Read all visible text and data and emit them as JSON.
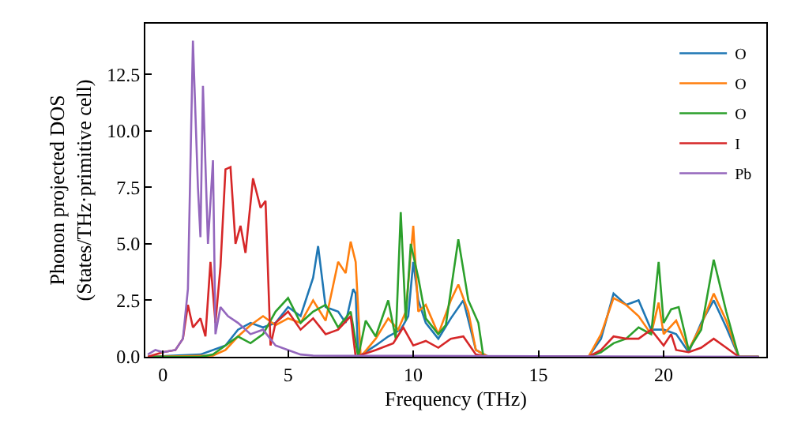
{
  "chart_data": {
    "type": "line",
    "xlabel": "Frequency (THz)",
    "ylabel": "Phonon projected DOS\n(States/THz·primitive cell)",
    "xlim": [
      -0.7,
      24.1
    ],
    "ylim": [
      0,
      14.75
    ],
    "xticks": [
      0,
      5,
      10,
      15,
      20
    ],
    "yticks": [
      {
        "value": 0,
        "label": "0.0"
      },
      {
        "value": 2.5,
        "label": "2.5"
      },
      {
        "value": 5,
        "label": "5.0"
      },
      {
        "value": 7.5,
        "label": "7.5"
      },
      {
        "value": 10,
        "label": "10.0"
      },
      {
        "value": 12.5,
        "label": "12.5"
      }
    ],
    "legend": "top right",
    "series": [
      {
        "name": "O",
        "color": "#1f77b4",
        "x": [
          -0.6,
          1.5,
          2.5,
          3,
          3.5,
          4,
          4.5,
          5,
          5.5,
          6,
          6.2,
          6.5,
          7,
          7.3,
          7.6,
          7.7,
          7.8,
          8.5,
          9,
          9.5,
          9.8,
          10,
          10.2,
          10.5,
          11,
          11.5,
          12,
          12.5,
          13,
          17,
          17.5,
          18,
          18.5,
          19,
          19.5,
          20,
          20.5,
          21,
          21.5,
          22,
          22.5,
          23,
          23.8
        ],
        "values": [
          0,
          0.1,
          0.5,
          1.2,
          1.5,
          1.3,
          1.5,
          2.2,
          1.8,
          3.5,
          4.9,
          2.2,
          2.0,
          1.5,
          3.0,
          2.8,
          0,
          0.5,
          0.9,
          1.2,
          1.8,
          4.2,
          2.5,
          1.5,
          0.8,
          1.7,
          2.5,
          0.3,
          0,
          0,
          0.8,
          2.8,
          2.3,
          2.5,
          1.2,
          1.2,
          1.0,
          0.2,
          1.5,
          2.5,
          1.3,
          0,
          0
        ]
      },
      {
        "name": "O",
        "color": "#ff7f0e",
        "x": [
          -0.6,
          2,
          2.5,
          3,
          3.5,
          4,
          4.5,
          5,
          5.5,
          6,
          6.5,
          7,
          7.3,
          7.5,
          7.7,
          7.9,
          8.5,
          9,
          9.4,
          9.7,
          10,
          10.2,
          10.5,
          11,
          11.5,
          11.8,
          12.2,
          12.5,
          13,
          17,
          17.5,
          18,
          18.5,
          19,
          19.5,
          19.8,
          20,
          20.5,
          21,
          21.5,
          22,
          22.5,
          23,
          23.8
        ],
        "values": [
          0,
          0.05,
          0.3,
          0.9,
          1.4,
          1.8,
          1.4,
          1.7,
          1.5,
          2.5,
          1.6,
          4.2,
          3.7,
          5.1,
          4.2,
          0,
          0.8,
          1.7,
          1.2,
          2.0,
          5.8,
          2.0,
          2.3,
          1.0,
          2.5,
          3.2,
          2.0,
          0.3,
          0,
          0,
          1.0,
          2.6,
          2.3,
          1.8,
          1.0,
          2.4,
          1.0,
          1.6,
          0.3,
          1.4,
          2.8,
          1.6,
          0,
          0
        ]
      },
      {
        "name": "O",
        "color": "#2ca02c",
        "x": [
          -0.6,
          1.5,
          2,
          2.5,
          3,
          3.5,
          4,
          4.5,
          5,
          5.5,
          6,
          6.5,
          7,
          7.5,
          7.8,
          8.1,
          8.5,
          9,
          9.3,
          9.5,
          9.7,
          9.9,
          10.2,
          10.5,
          11,
          11.3,
          11.8,
          12.2,
          12.6,
          12.8,
          17,
          17.5,
          18,
          18.5,
          19,
          19.5,
          19.8,
          20,
          20.3,
          20.6,
          21,
          21.5,
          22,
          22.5,
          23,
          23.8
        ],
        "values": [
          0,
          0,
          0.1,
          0.5,
          0.9,
          0.6,
          1.0,
          2.0,
          2.6,
          1.5,
          2.0,
          2.3,
          1.3,
          2.0,
          0,
          1.6,
          0.9,
          2.5,
          0.8,
          6.4,
          1.6,
          5.0,
          3.5,
          1.7,
          1.0,
          1.4,
          5.2,
          2.5,
          1.5,
          0,
          0,
          0.2,
          0.6,
          0.8,
          1.3,
          1.0,
          4.2,
          1.5,
          2.1,
          2.2,
          0.3,
          1.2,
          4.3,
          2.0,
          0,
          0
        ]
      },
      {
        "name": "I",
        "color": "#d62728",
        "x": [
          -0.6,
          0,
          0.5,
          0.8,
          1.0,
          1.2,
          1.5,
          1.7,
          1.9,
          2.1,
          2.3,
          2.5,
          2.7,
          2.9,
          3.1,
          3.3,
          3.6,
          3.9,
          4.1,
          4.3,
          4.5,
          5,
          5.5,
          6,
          6.5,
          7,
          7.5,
          7.7,
          8.5,
          9.2,
          9.6,
          10,
          10.5,
          11,
          11.5,
          12,
          12.5,
          13,
          17,
          17.5,
          18,
          18.5,
          19,
          19.5,
          20,
          20.3,
          20.5,
          21,
          21.5,
          22,
          22.5,
          23,
          23.8
        ],
        "values": [
          0,
          0.2,
          0.3,
          0.8,
          2.3,
          1.3,
          1.7,
          0.9,
          4.2,
          1.5,
          4.0,
          8.3,
          8.4,
          5.0,
          5.8,
          4.6,
          7.9,
          6.6,
          6.9,
          0.5,
          1.5,
          2.0,
          1.2,
          1.7,
          1.0,
          1.2,
          1.8,
          0,
          0.3,
          0.6,
          1.3,
          0.5,
          0.7,
          0.4,
          0.8,
          0.9,
          0.1,
          0,
          0,
          0.3,
          0.9,
          0.8,
          0.8,
          1.2,
          0.5,
          1.0,
          0.3,
          0.2,
          0.4,
          0.8,
          0.4,
          0,
          0
        ]
      },
      {
        "name": "Pb",
        "color": "#9467bd",
        "x": [
          -0.6,
          -0.3,
          0,
          0.5,
          0.8,
          1.0,
          1.2,
          1.4,
          1.5,
          1.6,
          1.8,
          2.0,
          2.1,
          2.3,
          2.6,
          3,
          3.5,
          4,
          4.5,
          5,
          5.5,
          6,
          23.8
        ],
        "values": [
          0.1,
          0.3,
          0.2,
          0.3,
          0.8,
          3.0,
          14.0,
          7.5,
          5.3,
          12.0,
          5.0,
          8.7,
          1.0,
          2.2,
          1.8,
          1.5,
          1.0,
          1.2,
          0.5,
          0.3,
          0.1,
          0.05,
          0
        ]
      }
    ]
  }
}
